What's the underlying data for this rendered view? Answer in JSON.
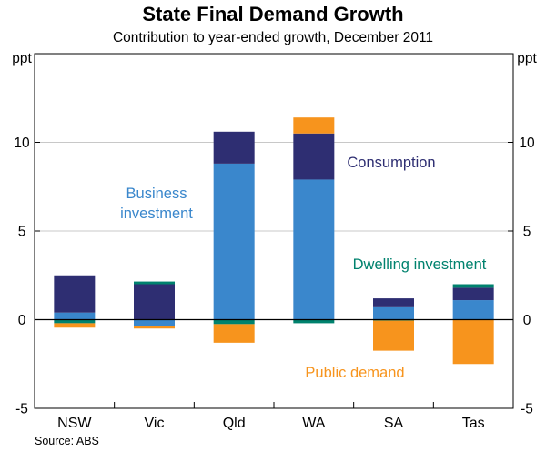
{
  "chart_data": {
    "type": "bar",
    "stacked": true,
    "title": "State Final Demand Growth",
    "subtitle": "Contribution to year-ended growth, December 2011",
    "y_unit": "ppt",
    "ylim": [
      -5,
      15
    ],
    "yticks": [
      -5,
      0,
      5,
      10
    ],
    "categories": [
      "NSW",
      "Vic",
      "Qld",
      "WA",
      "SA",
      "Tas"
    ],
    "series": [
      {
        "name": "Business investment",
        "color": "#3a87cc",
        "values": [
          0.4,
          -0.35,
          8.8,
          7.9,
          0.7,
          1.1
        ]
      },
      {
        "name": "Consumption",
        "color": "#2e2e72",
        "values": [
          2.1,
          2.0,
          1.8,
          2.6,
          0.5,
          0.7
        ]
      },
      {
        "name": "Dwelling investment",
        "color": "#00826e",
        "values": [
          -0.2,
          0.15,
          -0.25,
          -0.2,
          -0.05,
          0.2
        ]
      },
      {
        "name": "Public demand",
        "color": "#f7941d",
        "values": [
          -0.25,
          -0.15,
          -1.05,
          0.9,
          -1.7,
          -2.5
        ]
      }
    ],
    "annotations": [
      {
        "series": "Business investment",
        "lines": [
          "Business",
          "investment"
        ]
      },
      {
        "series": "Consumption",
        "lines": [
          "Consumption"
        ]
      },
      {
        "series": "Dwelling investment",
        "lines": [
          "Dwelling investment"
        ]
      },
      {
        "series": "Public demand",
        "lines": [
          "Public demand"
        ]
      }
    ],
    "source": "Source: ABS"
  }
}
